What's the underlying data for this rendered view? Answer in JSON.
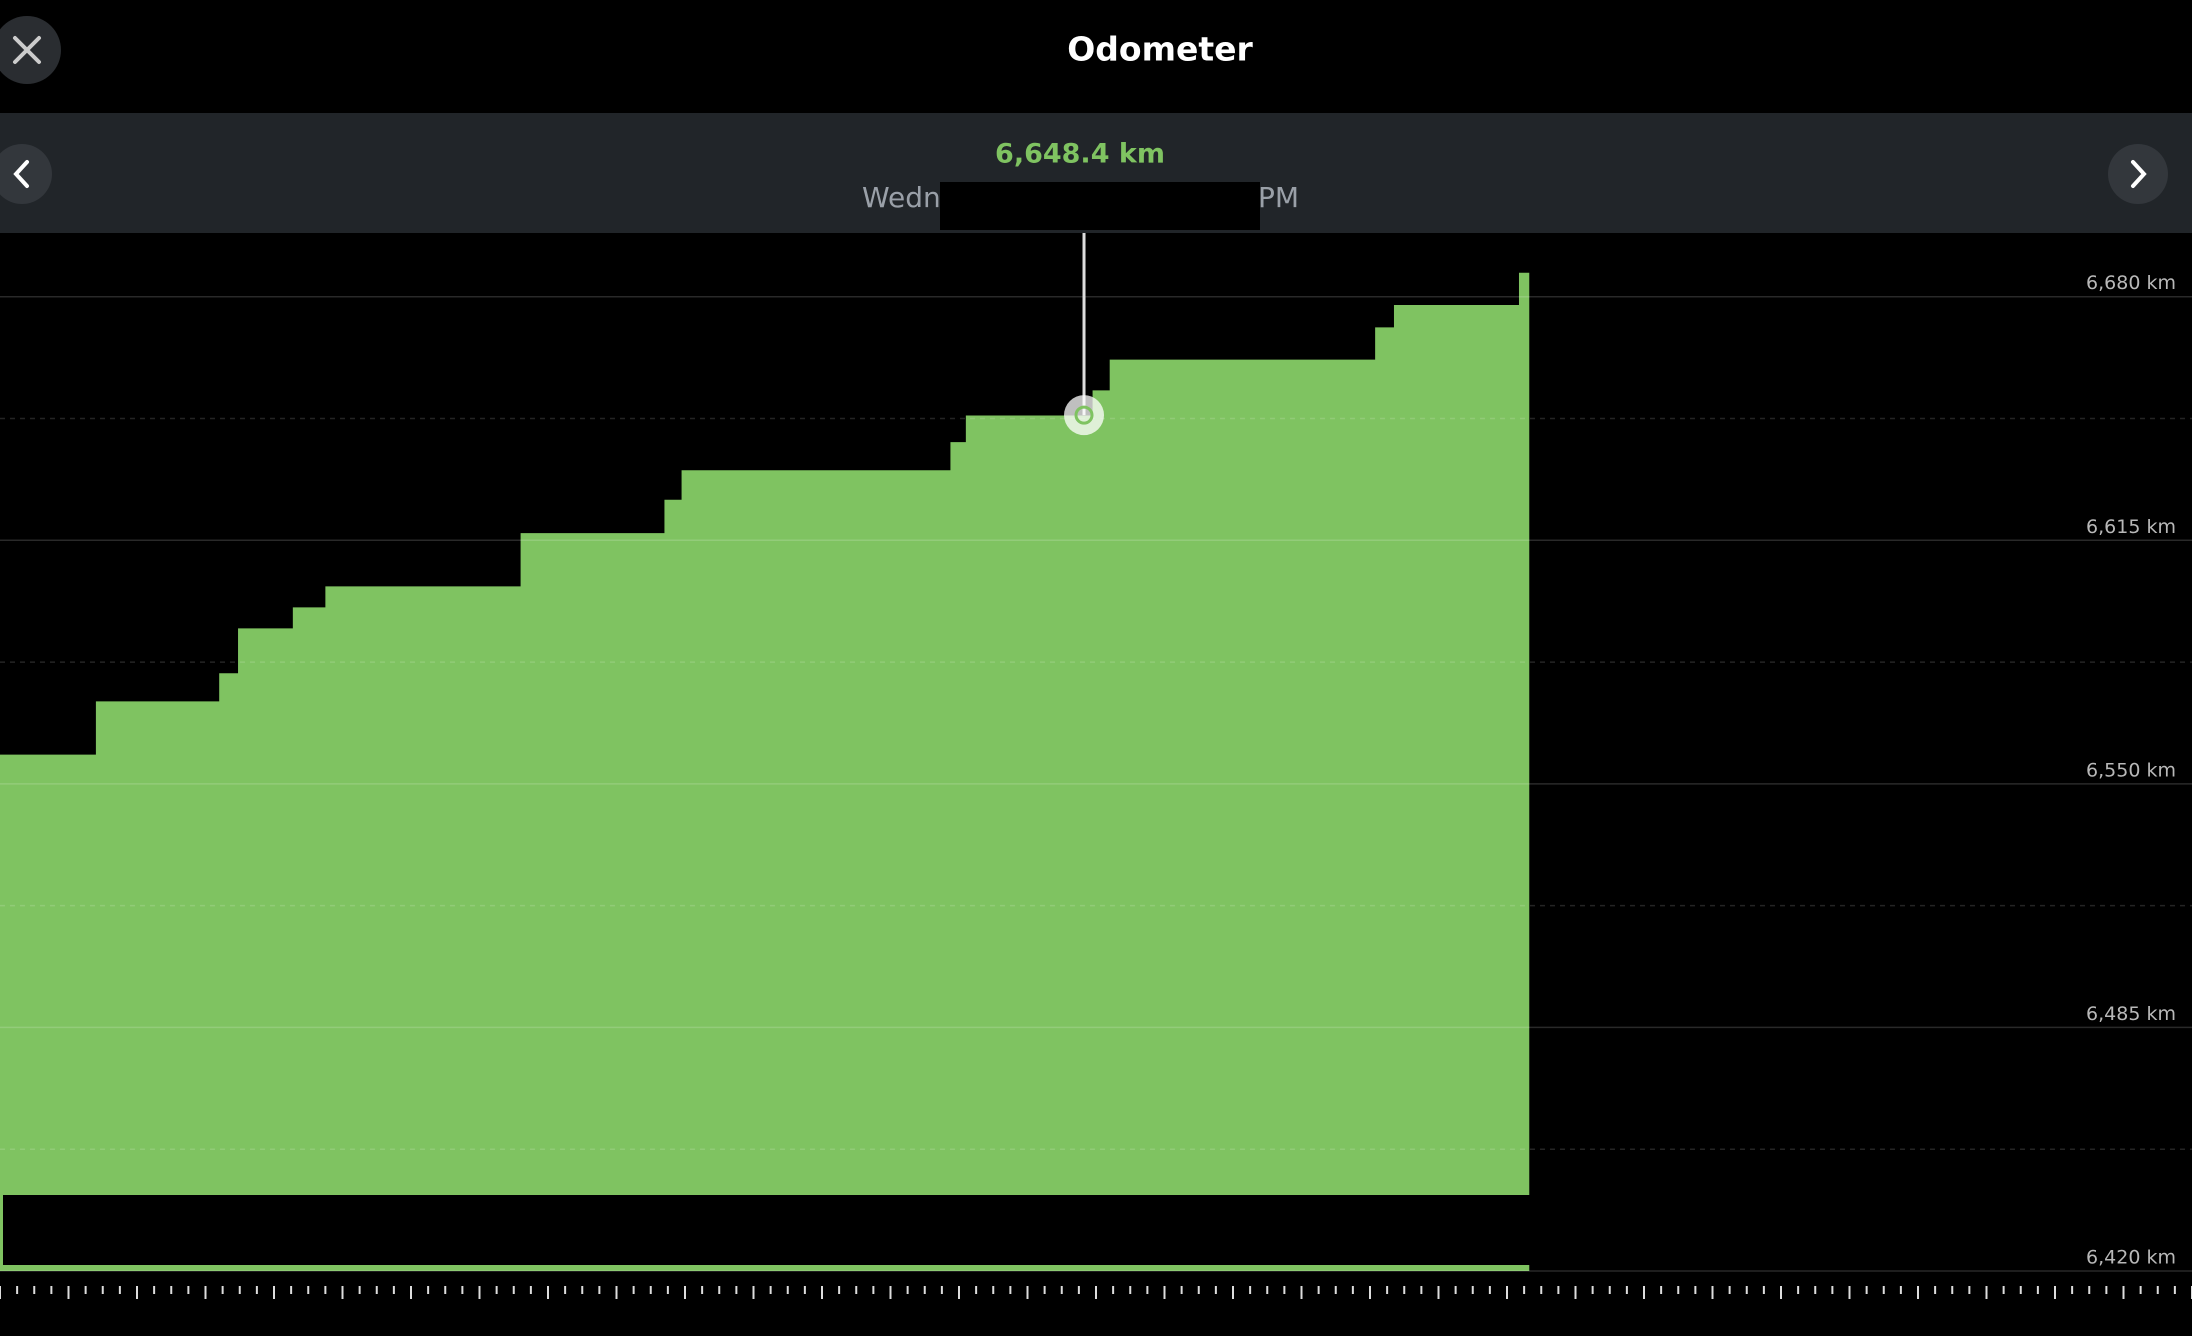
{
  "header": {
    "title": "Odometer"
  },
  "readout": {
    "date_start": "Wedn",
    "date_end": "PM"
  },
  "chart_data": {
    "type": "step-area",
    "x": [
      0,
      5.6,
      12.8,
      13.9,
      17.1,
      19,
      30.4,
      38.8,
      39.8,
      55.5,
      56.4,
      63.8,
      64.8,
      80.3,
      81.4,
      88.7,
      89.3
    ],
    "series": [
      {
        "name": "Odometer",
        "color": "#7fc361",
        "values": [
          6557.8,
          6572,
          6579.5,
          6591.5,
          6597.1,
          6602.7,
          6616.9,
          6625.8,
          6633.7,
          6641.2,
          6648.3,
          6655,
          6663.2,
          6671.8,
          6677.8,
          6686.4,
          6686.4
        ]
      }
    ],
    "selected": {
      "x": 63.3,
      "value": 6648.4,
      "label": "6,648.4 km"
    },
    "xlim": [
      0,
      128
    ],
    "ylim": [
      6420,
      6697
    ],
    "yticks": [
      {
        "value": 6680,
        "label": "6,680 km"
      },
      {
        "value": 6615,
        "label": "6,615 km"
      },
      {
        "value": 6550,
        "label": "6,550 km"
      },
      {
        "value": 6485,
        "label": "6,485 km"
      },
      {
        "value": 6420,
        "label": "6,420 km"
      }
    ],
    "minor_grid": [
      6647.5,
      6582.5,
      6517.5,
      6452.5
    ],
    "xticks": [
      0,
      1,
      2,
      3,
      4,
      5,
      6,
      7,
      8,
      9,
      10,
      11,
      12,
      13,
      14,
      15,
      16,
      17,
      18,
      19,
      20,
      21,
      22,
      23,
      24,
      25,
      26,
      27,
      28,
      29,
      30,
      31,
      32,
      33,
      34,
      35,
      36,
      37,
      38,
      39,
      40,
      41,
      42,
      43,
      44,
      45,
      46,
      47,
      48,
      49,
      50,
      51,
      52,
      53,
      54,
      55,
      56,
      57,
      58,
      59,
      60,
      61,
      62,
      63,
      64,
      65,
      66,
      67,
      68,
      69,
      70,
      71,
      72,
      73,
      74,
      75,
      76,
      77,
      78,
      79,
      80,
      81,
      82,
      83,
      84,
      85,
      86,
      87,
      88,
      89,
      90,
      91,
      92,
      93,
      94,
      95,
      96,
      97,
      98,
      99,
      100,
      101,
      102,
      103,
      104,
      105,
      106,
      107,
      108,
      109,
      110,
      111,
      112,
      113,
      114,
      115,
      116,
      117,
      118,
      119,
      120,
      121,
      122,
      123,
      124,
      125,
      126,
      127,
      128
    ],
    "grid": true
  }
}
